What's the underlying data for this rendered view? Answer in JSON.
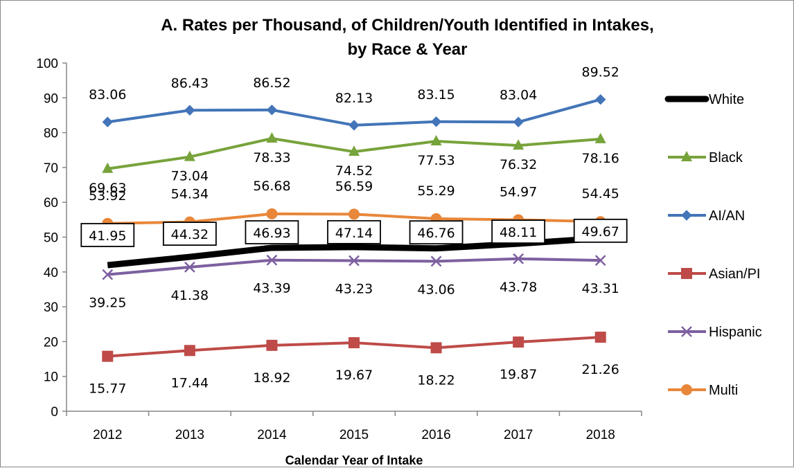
{
  "chart_data": {
    "type": "line",
    "title": "A. Rates per Thousand,  of Children/Youth Identified in Intakes,",
    "subtitle": "by Race & Year",
    "xlabel": "Calendar Year of Intake",
    "ylabel": "",
    "categories": [
      "2012",
      "2013",
      "2014",
      "2015",
      "2016",
      "2017",
      "2018"
    ],
    "ylim": [
      0,
      100
    ],
    "yticks": [
      0,
      10,
      20,
      30,
      40,
      50,
      60,
      70,
      80,
      90,
      100
    ],
    "grid": false,
    "legend_position": "right",
    "series": [
      {
        "name": "White",
        "color": "#000000",
        "marker": "none",
        "labels_boxed": true,
        "values": [
          41.95,
          44.32,
          46.93,
          47.14,
          46.76,
          48.11,
          49.67
        ]
      },
      {
        "name": "Black",
        "color": "#77A33B",
        "marker": "triangle",
        "labels_boxed": false,
        "values": [
          69.63,
          73.04,
          78.33,
          74.52,
          77.53,
          76.32,
          78.16
        ]
      },
      {
        "name": "AI/AN",
        "color": "#4375B8",
        "marker": "diamond",
        "labels_boxed": false,
        "values": [
          83.06,
          86.43,
          86.52,
          82.13,
          83.15,
          83.04,
          89.52
        ]
      },
      {
        "name": "Asian/PI",
        "color": "#BE4B48",
        "marker": "square",
        "labels_boxed": false,
        "values": [
          15.77,
          17.44,
          18.92,
          19.67,
          18.22,
          19.87,
          21.26
        ]
      },
      {
        "name": "Hispanic",
        "color": "#7D60A0",
        "marker": "x",
        "labels_boxed": false,
        "values": [
          39.25,
          41.38,
          43.39,
          43.23,
          43.06,
          43.78,
          43.31
        ]
      },
      {
        "name": "Multi",
        "color": "#E8873A",
        "marker": "circle",
        "labels_boxed": false,
        "values": [
          53.92,
          54.34,
          56.68,
          56.59,
          55.29,
          54.97,
          54.45
        ]
      }
    ]
  }
}
